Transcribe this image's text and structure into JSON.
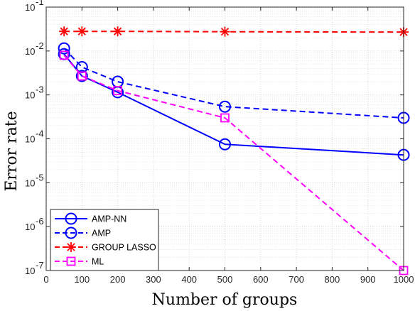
{
  "chart_data": {
    "type": "line",
    "xlabel": "Number of groups",
    "ylabel": "Error rate",
    "xlim": [
      0,
      1000
    ],
    "ylim": [
      1e-07,
      0.1
    ],
    "y_scale": "log",
    "grid": "on",
    "minor_grid": "on",
    "legend_position": "bottom-left",
    "x_ticks": [
      0,
      100,
      200,
      300,
      400,
      500,
      600,
      700,
      800,
      900,
      1000
    ],
    "y_ticks": [
      {
        "value": 1e-07,
        "exp": "-7"
      },
      {
        "value": 1e-06,
        "exp": "-6"
      },
      {
        "value": 1e-05,
        "exp": "-5"
      },
      {
        "value": 0.0001,
        "exp": "-4"
      },
      {
        "value": 0.001,
        "exp": "-3"
      },
      {
        "value": 0.01,
        "exp": "-2"
      },
      {
        "value": 0.1,
        "exp": "-1"
      }
    ],
    "series": [
      {
        "name": "AMP-NN",
        "color": "#0000FF",
        "dash": "solid",
        "marker": "circle",
        "x": [
          50,
          100,
          200,
          500,
          1000
        ],
        "y": [
          0.0085,
          0.0027,
          0.00115,
          7.5e-05,
          4.3e-05
        ]
      },
      {
        "name": "AMP",
        "color": "#0000FF",
        "dash": "dashed",
        "marker": "circle",
        "x": [
          50,
          100,
          200,
          500,
          1000
        ],
        "y": [
          0.0115,
          0.0043,
          0.002,
          0.00054,
          0.0003
        ]
      },
      {
        "name": "GROUP LASSO",
        "color": "#FF0000",
        "dash": "dashed",
        "marker": "asterisk",
        "x": [
          50,
          100,
          200,
          500,
          1000
        ],
        "y": [
          0.028,
          0.028,
          0.028,
          0.0275,
          0.027
        ]
      },
      {
        "name": "ML",
        "color": "#FF00FF",
        "dash": "dashed",
        "marker": "square",
        "x": [
          50,
          100,
          200,
          500,
          1000
        ],
        "y": [
          0.008,
          0.0027,
          0.00125,
          0.0003,
          1e-07
        ]
      }
    ]
  }
}
